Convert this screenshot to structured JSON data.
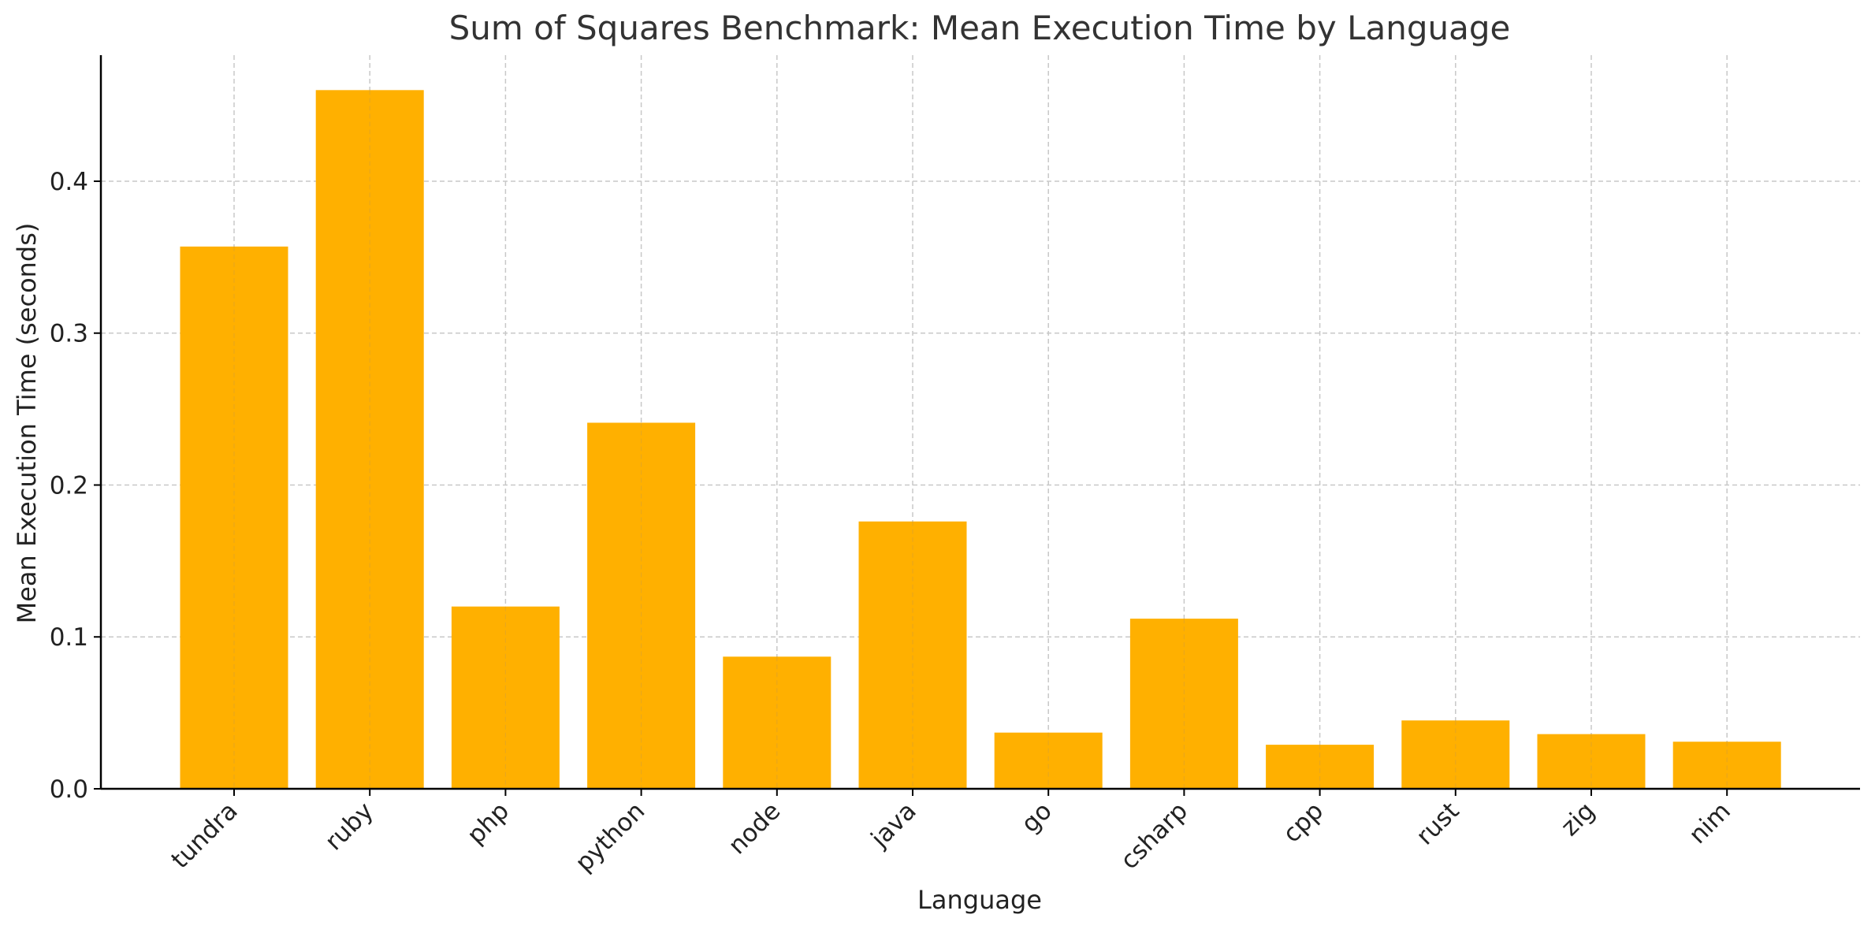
{
  "chart_data": {
    "type": "bar",
    "title": "Sum of Squares Benchmark: Mean Execution Time by Language",
    "xlabel": "Language",
    "ylabel": "Mean Execution Time (seconds)",
    "categories": [
      "tundra",
      "ruby",
      "php",
      "python",
      "node",
      "java",
      "go",
      "csharp",
      "cpp",
      "rust",
      "zig",
      "nim"
    ],
    "values": [
      0.357,
      0.46,
      0.12,
      0.241,
      0.087,
      0.176,
      0.037,
      0.112,
      0.029,
      0.045,
      0.036,
      0.031
    ],
    "ylim": [
      0,
      0.483
    ],
    "yticks": [
      0.0,
      0.1,
      0.2,
      0.3,
      0.4
    ],
    "ytick_labels": [
      "0.0",
      "0.1",
      "0.2",
      "0.3",
      "0.4"
    ],
    "grid": true,
    "colors": {
      "bar": "#FFB000",
      "grid": "#c8c8c8",
      "axis": "#000000",
      "text": "#333333"
    }
  }
}
